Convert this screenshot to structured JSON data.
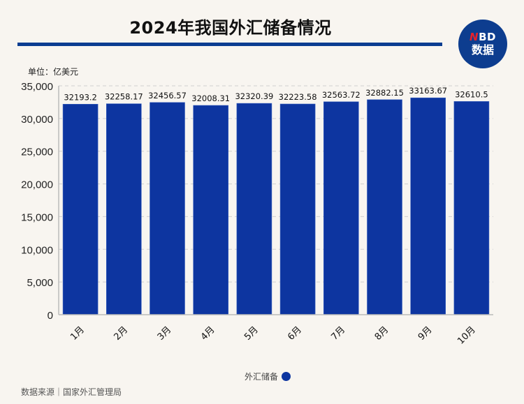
{
  "header": {
    "title": "2024年我国外汇储备情况",
    "logo_top_first": "N",
    "logo_top_rest": "BD",
    "logo_bottom": "数据"
  },
  "unit_label": "单位：亿美元",
  "legend": {
    "label": "外汇储备",
    "color": "#0d35a0"
  },
  "source": "数据来源｜国家外汇管理局",
  "chart_data": {
    "type": "bar",
    "title": "2024年我国外汇储备情况",
    "xlabel": "",
    "ylabel": "单位：亿美元",
    "categories": [
      "1月",
      "2月",
      "3月",
      "4月",
      "5月",
      "6月",
      "7月",
      "8月",
      "9月",
      "10月"
    ],
    "series": [
      {
        "name": "外汇储备",
        "color": "#0d35a0",
        "values": [
          32193.2,
          32258.17,
          32456.57,
          32008.31,
          32320.39,
          32223.58,
          32563.72,
          32882.15,
          33163.67,
          32610.5
        ],
        "labels": [
          "32193.2",
          "32258.17",
          "32456.57",
          "32008.31",
          "32320.39",
          "32223.58",
          "32563.72",
          "32882.15",
          "33163.67",
          "32610.5"
        ]
      }
    ],
    "ylim": [
      0,
      35000
    ],
    "yticks": [
      0,
      5000,
      10000,
      15000,
      20000,
      25000,
      30000,
      35000
    ],
    "ytick_labels": [
      "0",
      "5,000",
      "10,000",
      "15,000",
      "20,000",
      "25,000",
      "30,000",
      "35,000"
    ],
    "grid": true,
    "legend_position": "bottom"
  }
}
